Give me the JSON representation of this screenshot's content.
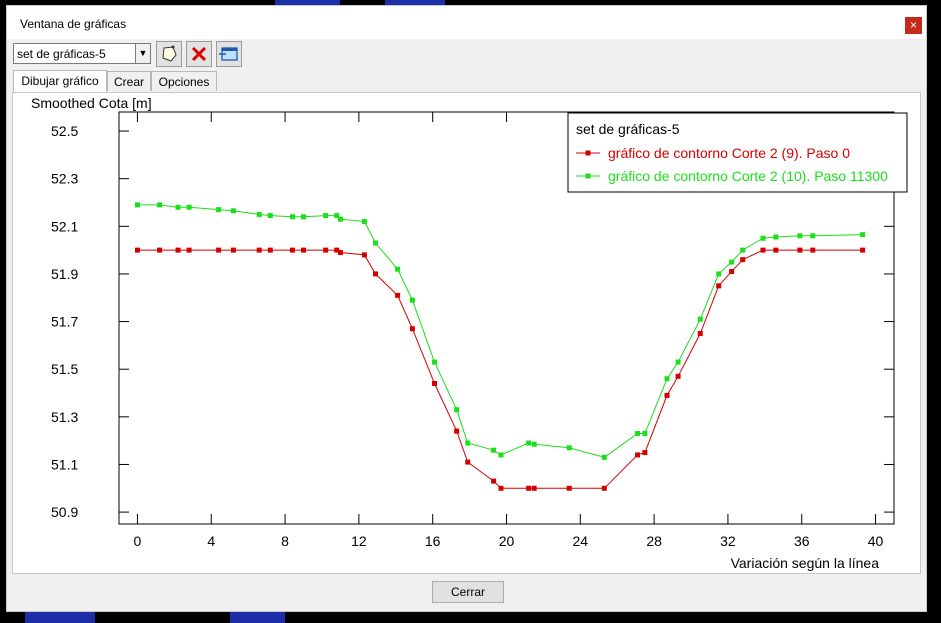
{
  "window": {
    "title": "Ventana de gráficas"
  },
  "toolbar": {
    "set_selector_value": "set de gráficas-5",
    "buttons": [
      {
        "icon": "polygon-select-icon"
      },
      {
        "icon": "delete-x-icon"
      },
      {
        "icon": "window-copy-icon"
      }
    ]
  },
  "tabs": [
    {
      "label": "Dibujar gráfico",
      "active": true
    },
    {
      "label": "Crear",
      "active": false
    },
    {
      "label": "Opciones",
      "active": false
    }
  ],
  "footer": {
    "close_label": "Cerrar"
  },
  "chart_data": {
    "type": "line",
    "title": "",
    "ylabel": "Smoothed Cota [m]",
    "xlabel": "Variación según la línea",
    "xlim": [
      -1,
      41
    ],
    "ylim": [
      50.85,
      52.58
    ],
    "xticks": [
      0,
      4,
      8,
      12,
      16,
      20,
      24,
      28,
      32,
      36,
      40
    ],
    "yticks": [
      50.9,
      51.1,
      51.3,
      51.5,
      51.7,
      51.9,
      52.1,
      52.3,
      52.5
    ],
    "legend": {
      "title": "set de gráficas-5",
      "placement": "top-right"
    },
    "series": [
      {
        "name": "gráfico de contorno Corte 2 (9). Paso 0",
        "color": "#d40000",
        "x": [
          0,
          1.2,
          2.2,
          2.8,
          4.4,
          5.2,
          6.6,
          7.2,
          8.4,
          9.0,
          10.2,
          10.8,
          11.0,
          12.3,
          12.9,
          14.1,
          14.9,
          16.1,
          17.3,
          17.9,
          19.3,
          19.7,
          21.2,
          21.5,
          23.4,
          25.3,
          27.1,
          27.5,
          28.7,
          29.3,
          30.5,
          31.5,
          32.2,
          32.8,
          33.9,
          34.6,
          35.9,
          36.6,
          39.3
        ],
        "y": [
          52.0,
          52.0,
          52.0,
          52.0,
          52.0,
          52.0,
          52.0,
          52.0,
          52.0,
          52.0,
          52.0,
          52.0,
          51.99,
          51.98,
          51.9,
          51.81,
          51.67,
          51.44,
          51.24,
          51.11,
          51.03,
          51.0,
          51.0,
          51.0,
          51.0,
          51.0,
          51.14,
          51.15,
          51.39,
          51.47,
          51.65,
          51.85,
          51.91,
          51.96,
          52.0,
          52.0,
          52.0,
          52.0,
          52.0
        ]
      },
      {
        "name": "gráfico de contorno Corte 2 (10). Paso 11300",
        "color": "#1adf1a",
        "x": [
          0,
          1.2,
          2.2,
          2.8,
          4.4,
          5.2,
          6.6,
          7.2,
          8.4,
          9.0,
          10.2,
          10.8,
          11.0,
          12.3,
          12.9,
          14.1,
          14.9,
          16.1,
          17.3,
          17.9,
          19.3,
          19.7,
          21.2,
          21.5,
          23.4,
          25.3,
          27.1,
          27.5,
          28.7,
          29.3,
          30.5,
          31.5,
          32.2,
          32.8,
          33.9,
          34.6,
          35.9,
          36.6,
          39.3
        ],
        "y": [
          52.19,
          52.19,
          52.18,
          52.18,
          52.17,
          52.165,
          52.15,
          52.145,
          52.14,
          52.14,
          52.145,
          52.145,
          52.13,
          52.12,
          52.03,
          51.92,
          51.79,
          51.53,
          51.33,
          51.19,
          51.16,
          51.14,
          51.19,
          51.185,
          51.17,
          51.13,
          51.23,
          51.23,
          51.46,
          51.53,
          51.71,
          51.9,
          51.95,
          52.0,
          52.05,
          52.055,
          52.06,
          52.06,
          52.065
        ]
      }
    ]
  }
}
